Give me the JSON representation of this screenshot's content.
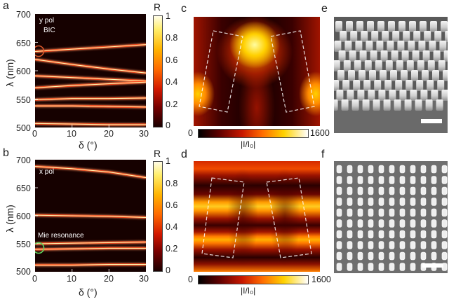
{
  "panel_labels": {
    "a": "a",
    "b": "b",
    "c": "c",
    "d": "d",
    "e": "e",
    "f": "f"
  },
  "panel_a": {
    "annotation_1": "y pol",
    "annotation_2": "BIC",
    "y_label": "λ (nm)",
    "x_label": "δ (°)",
    "y_ticks": [
      "700",
      "650",
      "600",
      "550",
      "500"
    ],
    "x_ticks": [
      "0",
      "10",
      "20",
      "30"
    ],
    "colorbar_title": "R",
    "colorbar_ticks": [
      "1",
      "0.8",
      "0.6",
      "0.4",
      "0.2",
      "0"
    ]
  },
  "panel_b": {
    "annotation_1": "x pol",
    "annotation_2": "Mie resonance",
    "y_label": "λ (nm)",
    "x_label": "δ (°)",
    "y_ticks": [
      "700",
      "650",
      "600",
      "550",
      "500"
    ],
    "x_ticks": [
      "0",
      "10",
      "20",
      "30"
    ],
    "colorbar_title": "R",
    "colorbar_ticks": [
      "1",
      "0.8",
      "0.6",
      "0.4",
      "0.2",
      "0"
    ]
  },
  "panel_c": {
    "colorbar_min": "0",
    "colorbar_max": "1600",
    "colorbar_label": "|I/I₀|"
  },
  "panel_d": {
    "colorbar_min": "0",
    "colorbar_max": "1600",
    "colorbar_label": "|I/I₀|"
  },
  "colors": {
    "map_dark": "#150000",
    "map_mid": "#c01a00",
    "map_bright": "#ffe24a",
    "bic_marker": "#d9572a",
    "mie_marker": "#5fd45f"
  },
  "chart_data": [
    {
      "type": "heatmap",
      "panel": "a",
      "title": "",
      "xlabel": "δ (°)",
      "ylabel": "λ (nm)",
      "xlim": [
        0,
        30
      ],
      "ylim": [
        500,
        700
      ],
      "colorbar": {
        "label": "R",
        "range": [
          0,
          1
        ]
      },
      "series": [
        {
          "values": [
            [
              0,
              634
            ],
            [
              10,
              638
            ],
            [
              20,
              642
            ],
            [
              30,
              646
            ]
          ]
        },
        {
          "values": [
            [
              0,
              620
            ],
            [
              10,
              611
            ],
            [
              20,
              603
            ],
            [
              30,
              596
            ]
          ]
        },
        {
          "values": [
            [
              0,
              591
            ],
            [
              10,
              588
            ],
            [
              20,
              585
            ],
            [
              30,
              582
            ]
          ]
        },
        {
          "values": [
            [
              0,
              570
            ],
            [
              10,
              574
            ],
            [
              20,
              577
            ],
            [
              30,
              580
            ]
          ]
        },
        {
          "values": [
            [
              0,
              549
            ],
            [
              10,
              551
            ],
            [
              20,
              551
            ],
            [
              30,
              552
            ]
          ]
        },
        {
          "values": [
            [
              0,
              538
            ],
            [
              10,
              538
            ],
            [
              20,
              537
            ],
            [
              30,
              536
            ]
          ]
        },
        {
          "values": [
            [
              0,
              507
            ],
            [
              10,
              506
            ],
            [
              20,
              505
            ],
            [
              30,
              505
            ]
          ]
        }
      ],
      "annotations": [
        "y pol",
        "BIC"
      ]
    },
    {
      "type": "heatmap",
      "panel": "b",
      "title": "",
      "xlabel": "δ (°)",
      "ylabel": "λ (nm)",
      "xlim": [
        0,
        30
      ],
      "ylim": [
        500,
        700
      ],
      "colorbar": {
        "label": "R",
        "range": [
          0,
          1
        ]
      },
      "series": [
        {
          "values": [
            [
              0,
              688
            ],
            [
              10,
              684
            ],
            [
              20,
              678
            ],
            [
              30,
              668
            ]
          ]
        },
        {
          "values": [
            [
              0,
              601
            ],
            [
              10,
              600
            ],
            [
              20,
              599
            ],
            [
              30,
              597
            ]
          ]
        },
        {
          "values": [
            [
              0,
              550
            ],
            [
              10,
              551
            ],
            [
              20,
              552
            ],
            [
              30,
              553
            ]
          ]
        },
        {
          "values": [
            [
              0,
              540
            ],
            [
              10,
              541
            ],
            [
              20,
              542
            ],
            [
              30,
              542
            ]
          ]
        },
        {
          "values": [
            [
              0,
              512
            ],
            [
              10,
              512
            ],
            [
              20,
              513
            ],
            [
              30,
              513
            ]
          ]
        }
      ],
      "annotations": [
        "x pol",
        "Mie resonance"
      ]
    }
  ]
}
